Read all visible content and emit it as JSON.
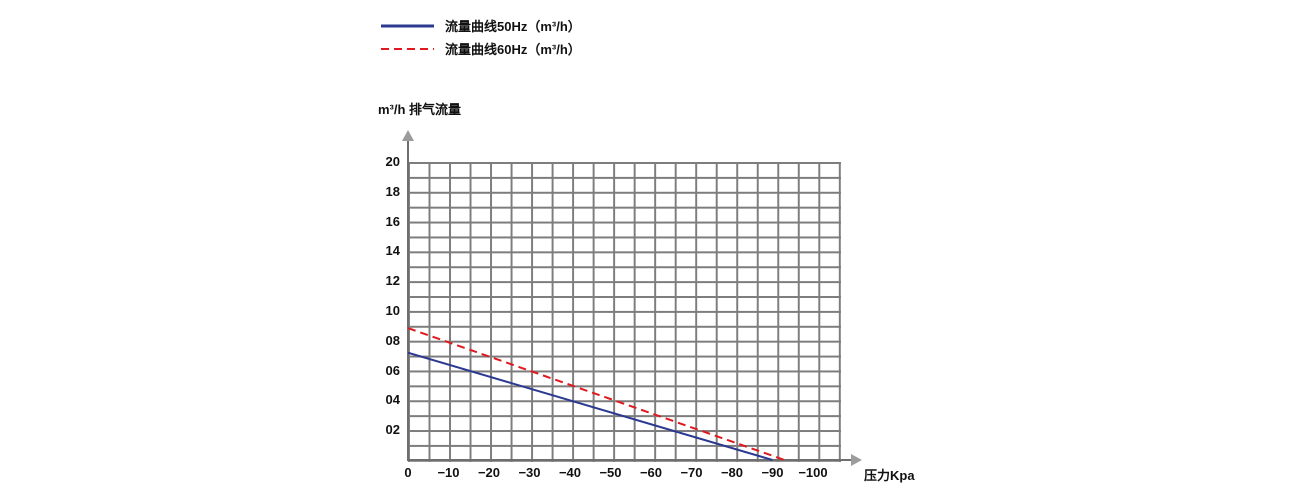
{
  "colors": {
    "background": "#ffffff",
    "grid": "#7D7D7D",
    "axis": "#6E6E6E",
    "axis_arrow": "#9C9C9C",
    "text": "#111111",
    "series_50hz": "#2B3990",
    "series_60hz": "#E0191F"
  },
  "chart_data": {
    "type": "line",
    "title": "",
    "ylabel": "m³/h 排气流量",
    "xlabel": "压力Kpa",
    "y_ticks": [
      "20",
      "18",
      "16",
      "14",
      "12",
      "10",
      "08",
      "06",
      "04",
      "02"
    ],
    "x_ticks": [
      "0",
      "−10",
      "−20",
      "−30",
      "−40",
      "−50",
      "−60",
      "−70",
      "−80",
      "−90",
      "−100"
    ],
    "ylim": [
      0,
      20
    ],
    "xlim": [
      0,
      -106
    ],
    "y_tick_step": 2,
    "x_tick_step_kpa": 10,
    "grid": true,
    "legend_position": "top-left",
    "series": [
      {
        "name": "流量曲线50Hz（m³/h）",
        "color": "#2B3990",
        "line_style": "solid",
        "points": [
          [
            0,
            7.2
          ],
          [
            -90,
            0
          ]
        ]
      },
      {
        "name": "流量曲线60Hz（m³/h）",
        "color": "#E0191F",
        "line_style": "dashed",
        "points": [
          [
            0,
            8.85
          ],
          [
            -93,
            0
          ]
        ]
      }
    ]
  }
}
